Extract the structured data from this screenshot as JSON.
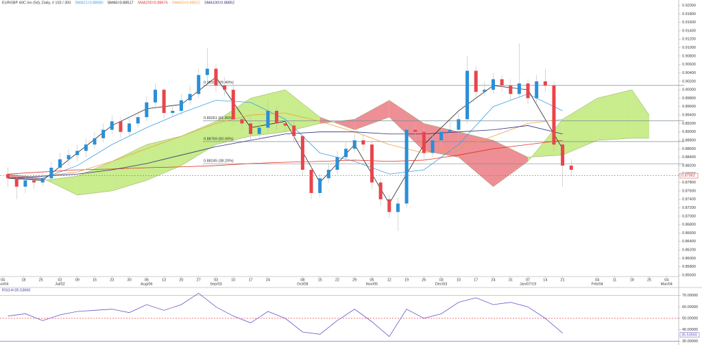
{
  "chart_data": [
    {
      "type": "candlestick",
      "title": "EURGBP 40C Ixn (5d), Daily, # 103 / 300",
      "up_color": "#2a8fd6",
      "down_color": "#e8454b",
      "x": [
        -3,
        -2.5,
        -2,
        -1.5,
        -1,
        -0.5,
        0,
        0.5,
        1,
        1.5,
        2,
        2.5,
        3,
        3.5,
        4,
        4.5,
        5,
        5.5,
        6,
        6.5,
        7,
        7.5,
        8,
        8.5,
        9,
        9.5,
        10,
        10.5,
        11,
        11.5,
        12,
        12.5,
        13,
        13.5,
        14,
        14.5,
        15,
        15.5,
        16,
        16.5,
        17,
        17.5,
        18,
        18.5,
        19,
        19.5,
        20,
        20.5,
        21,
        21.5,
        22,
        22.5,
        23,
        23.5,
        24,
        24.5,
        25,
        25.5,
        26,
        26.5,
        27,
        27.5,
        28,
        28.5,
        29,
        29.5
      ],
      "open": [
        0.88,
        0.879,
        0.877,
        0.8785,
        0.878,
        0.879,
        0.8815,
        0.8835,
        0.8845,
        0.8855,
        0.887,
        0.8885,
        0.8905,
        0.8925,
        0.89,
        0.892,
        0.8935,
        0.897,
        0.9,
        0.8945,
        0.895,
        0.8975,
        0.899,
        0.9035,
        0.905,
        0.901,
        0.9,
        0.893,
        0.892,
        0.8895,
        0.891,
        0.895,
        0.892,
        0.8915,
        0.889,
        0.881,
        0.8755,
        0.879,
        0.881,
        0.884,
        0.886,
        0.888,
        0.887,
        0.878,
        0.874,
        0.871,
        0.873,
        0.8905,
        0.89,
        0.885,
        0.888,
        0.89,
        0.8905,
        0.893,
        0.9045,
        0.8995,
        0.9,
        0.9025,
        0.901,
        0.899,
        0.9015,
        0.898,
        0.902,
        0.901,
        0.887,
        0.882
      ],
      "high": [
        0.8815,
        0.88,
        0.88,
        0.88,
        0.8805,
        0.883,
        0.885,
        0.886,
        0.887,
        0.8885,
        0.89,
        0.892,
        0.894,
        0.8935,
        0.8935,
        0.895,
        0.8985,
        0.9015,
        0.9005,
        0.8965,
        0.899,
        0.901,
        0.905,
        0.91,
        0.906,
        0.903,
        0.901,
        0.8945,
        0.8935,
        0.8925,
        0.8975,
        0.896,
        0.8935,
        0.8925,
        0.89,
        0.882,
        0.88,
        0.8825,
        0.8855,
        0.8875,
        0.89,
        0.8895,
        0.888,
        0.879,
        0.875,
        0.8745,
        0.8915,
        0.892,
        0.891,
        0.8895,
        0.8915,
        0.8925,
        0.8945,
        0.908,
        0.9055,
        0.902,
        0.904,
        0.9035,
        0.9025,
        0.911,
        0.9025,
        0.9035,
        0.905,
        0.902,
        0.888,
        0.8835
      ],
      "low": [
        0.877,
        0.874,
        0.8755,
        0.8765,
        0.877,
        0.878,
        0.8805,
        0.882,
        0.883,
        0.884,
        0.886,
        0.8875,
        0.8895,
        0.8885,
        0.889,
        0.891,
        0.8925,
        0.896,
        0.893,
        0.8935,
        0.894,
        0.8965,
        0.898,
        0.902,
        0.8995,
        0.8985,
        0.8915,
        0.8905,
        0.888,
        0.888,
        0.89,
        0.8905,
        0.89,
        0.8875,
        0.8795,
        0.874,
        0.8745,
        0.878,
        0.88,
        0.883,
        0.885,
        0.8855,
        0.8765,
        0.8725,
        0.8695,
        0.8665,
        0.872,
        0.8885,
        0.8835,
        0.884,
        0.8865,
        0.889,
        0.8895,
        0.892,
        0.898,
        0.8985,
        0.899,
        0.8995,
        0.8975,
        0.898,
        0.8965,
        0.897,
        0.8995,
        0.8855,
        0.877,
        0.8795
      ],
      "close": [
        0.879,
        0.877,
        0.8785,
        0.878,
        0.879,
        0.8815,
        0.8835,
        0.8845,
        0.8855,
        0.887,
        0.8885,
        0.8905,
        0.8925,
        0.89,
        0.892,
        0.8935,
        0.897,
        0.9,
        0.8945,
        0.895,
        0.8975,
        0.899,
        0.9035,
        0.905,
        0.901,
        0.9,
        0.893,
        0.892,
        0.8895,
        0.891,
        0.895,
        0.892,
        0.8915,
        0.889,
        0.881,
        0.8755,
        0.879,
        0.881,
        0.884,
        0.886,
        0.888,
        0.887,
        0.878,
        0.874,
        0.871,
        0.873,
        0.8905,
        0.89,
        0.885,
        0.888,
        0.89,
        0.8905,
        0.893,
        0.9045,
        0.8995,
        0.9,
        0.9025,
        0.901,
        0.899,
        0.9015,
        0.898,
        0.902,
        0.901,
        0.887,
        0.882,
        0.881
      ],
      "cloud": {
        "x": [
          -3,
          -1,
          1,
          3,
          5,
          7,
          9,
          11,
          13,
          15,
          17,
          19,
          21,
          23,
          25,
          27,
          29,
          31,
          33,
          34
        ],
        "span_a": [
          0.879,
          0.8785,
          0.8795,
          0.883,
          0.887,
          0.889,
          0.8925,
          0.898,
          0.9,
          0.8935,
          0.8905,
          0.8935,
          0.8855,
          0.884,
          0.877,
          0.883,
          0.893,
          0.898,
          0.9,
          0.894
        ],
        "span_b": [
          0.88,
          0.879,
          0.875,
          0.876,
          0.8785,
          0.882,
          0.887,
          0.889,
          0.89,
          0.892,
          0.893,
          0.8975,
          0.892,
          0.89,
          0.888,
          0.884,
          0.8845,
          0.888,
          0.8885,
          0.8885
        ],
        "up_color": "#c9ec8c",
        "down_color": "#ee8f95"
      },
      "series": [
        {
          "name": "SMA21=0.88680",
          "color": "#3aa0e0",
          "x": [
            -3,
            -1,
            1,
            3,
            5,
            7,
            9,
            11,
            13,
            15,
            17,
            19,
            21,
            23,
            25,
            27,
            29
          ],
          "values": [
            0.879,
            0.879,
            0.882,
            0.887,
            0.891,
            0.8945,
            0.8975,
            0.897,
            0.893,
            0.885,
            0.883,
            0.88,
            0.881,
            0.887,
            0.896,
            0.899,
            0.895
          ]
        },
        {
          "name": "SMA5=0.88517",
          "color": "#222222",
          "x": [
            -3,
            -1,
            1,
            3,
            5,
            7,
            9,
            11,
            13,
            15,
            17,
            19,
            21,
            23,
            25,
            27,
            29
          ],
          "values": [
            0.879,
            0.8785,
            0.885,
            0.8915,
            0.8955,
            0.8965,
            0.903,
            0.891,
            0.8925,
            0.878,
            0.887,
            0.873,
            0.887,
            0.895,
            0.901,
            0.9,
            0.886
          ]
        },
        {
          "name": "SMA200=0.88676",
          "color": "#e03020",
          "x": [
            -3,
            -1,
            1,
            3,
            5,
            7,
            9,
            11,
            13,
            15,
            17,
            19,
            21,
            23,
            25,
            27,
            29
          ],
          "values": [
            0.88,
            0.8805,
            0.881,
            0.8812,
            0.8815,
            0.8817,
            0.882,
            0.8825,
            0.8828,
            0.883,
            0.8833,
            0.883,
            0.8833,
            0.8845,
            0.886,
            0.887,
            0.888
          ]
        },
        {
          "name": "SMA50=0.88522",
          "color": "#f0a040",
          "x": [
            -3,
            -1,
            1,
            3,
            5,
            7,
            9,
            11,
            13,
            15,
            17,
            19,
            21,
            23,
            25,
            27,
            29
          ],
          "values": [
            0.879,
            0.8795,
            0.8805,
            0.883,
            0.886,
            0.889,
            0.892,
            0.894,
            0.8945,
            0.8925,
            0.89,
            0.887,
            0.885,
            0.886,
            0.889,
            0.892,
            0.893
          ]
        },
        {
          "name": "SMA100=0.88852",
          "color": "#2a2a7a",
          "x": [
            -3,
            -1,
            1,
            3,
            5,
            7,
            9,
            11,
            13,
            15,
            17,
            19,
            21,
            23,
            25,
            27,
            29
          ],
          "values": [
            0.879,
            0.8795,
            0.88,
            0.881,
            0.8825,
            0.8845,
            0.8865,
            0.888,
            0.8895,
            0.89,
            0.89,
            0.8895,
            0.8895,
            0.89,
            0.8905,
            0.8915,
            0.8895
          ]
        }
      ],
      "fib_levels": [
        {
          "value": 0.90103,
          "label": "0.90103 (76.40%)"
        },
        {
          "value": 0.89261,
          "label": "0.89261 (61.80%)"
        },
        {
          "value": 0.88769,
          "label": "0.88769 (50.00%)"
        },
        {
          "value": 0.88245,
          "label": "0.88245 (38.20%)"
        }
      ],
      "last_price": {
        "value": 0.87962,
        "label": "0.87962"
      },
      "xlim": [
        -3.46,
        35.7
      ],
      "ylim": [
        0.856,
        0.92
      ],
      "yticks": [
        {
          "value": 0.92,
          "label": "0.92000"
        },
        {
          "value": 0.918,
          "label": "0.91800"
        },
        {
          "value": 0.916,
          "label": "0.91600"
        },
        {
          "value": 0.914,
          "label": "0.91400"
        },
        {
          "value": 0.912,
          "label": "0.91200"
        },
        {
          "value": 0.91,
          "label": "0.91000"
        },
        {
          "value": 0.908,
          "label": "0.90800"
        },
        {
          "value": 0.906,
          "label": "0.90600"
        },
        {
          "value": 0.904,
          "label": "0.90400"
        },
        {
          "value": 0.902,
          "label": "0.90200"
        },
        {
          "value": 0.9,
          "label": "0.90000"
        },
        {
          "value": 0.898,
          "label": "0.89800"
        },
        {
          "value": 0.896,
          "label": "0.89600"
        },
        {
          "value": 0.894,
          "label": "0.89400"
        },
        {
          "value": 0.892,
          "label": "0.89200"
        },
        {
          "value": 0.89,
          "label": "0.89000"
        },
        {
          "value": 0.888,
          "label": "0.88800"
        },
        {
          "value": 0.886,
          "label": "0.88600"
        },
        {
          "value": 0.884,
          "label": "0.88400"
        },
        {
          "value": 0.882,
          "label": "0.88200"
        },
        {
          "value": 0.88,
          "label": "0.88000"
        },
        {
          "value": 0.878,
          "label": "0.87800"
        },
        {
          "value": 0.876,
          "label": "0.87600"
        },
        {
          "value": 0.874,
          "label": "0.87400"
        },
        {
          "value": 0.872,
          "label": "0.87200"
        },
        {
          "value": 0.87,
          "label": "0.87000"
        },
        {
          "value": 0.868,
          "label": "0.86800"
        },
        {
          "value": 0.866,
          "label": "0.86600"
        },
        {
          "value": 0.864,
          "label": "0.86400"
        },
        {
          "value": 0.862,
          "label": "0.86200"
        },
        {
          "value": 0.86,
          "label": "0.86000"
        },
        {
          "value": 0.858,
          "label": "0.85800"
        },
        {
          "value": 0.856,
          "label": "0.85600"
        }
      ],
      "xticks": [
        {
          "value": -3.3,
          "label": "04"
        },
        {
          "value": -2.1,
          "label": "18"
        },
        {
          "value": -1.1,
          "label": "25"
        },
        {
          "value": 0,
          "label": "02"
        },
        {
          "value": 1,
          "label": "09"
        },
        {
          "value": 2,
          "label": "16"
        },
        {
          "value": 3,
          "label": "23"
        },
        {
          "value": 4,
          "label": "30"
        },
        {
          "value": 5,
          "label": "06"
        },
        {
          "value": 6,
          "label": "13"
        },
        {
          "value": 7,
          "label": "20"
        },
        {
          "value": 8,
          "label": "27"
        },
        {
          "value": 9,
          "label": "03"
        },
        {
          "value": 10,
          "label": "10"
        },
        {
          "value": 11,
          "label": "17"
        },
        {
          "value": 12,
          "label": "24"
        },
        {
          "value": 14,
          "label": "08"
        },
        {
          "value": 15,
          "label": "15"
        },
        {
          "value": 16,
          "label": "22"
        },
        {
          "value": 17,
          "label": "29"
        },
        {
          "value": 18,
          "label": "05"
        },
        {
          "value": 19,
          "label": "12"
        },
        {
          "value": 20,
          "label": "19"
        },
        {
          "value": 21,
          "label": "26"
        },
        {
          "value": 22,
          "label": "03"
        },
        {
          "value": 23,
          "label": "10"
        },
        {
          "value": 24,
          "label": "17"
        },
        {
          "value": 25,
          "label": "24"
        },
        {
          "value": 26,
          "label": "31"
        },
        {
          "value": 27,
          "label": "07"
        },
        {
          "value": 28,
          "label": "14"
        },
        {
          "value": 29,
          "label": "21"
        },
        {
          "value": 31,
          "label": "04"
        },
        {
          "value": 32,
          "label": "11"
        },
        {
          "value": 33,
          "label": "18"
        },
        {
          "value": 34,
          "label": "25"
        },
        {
          "value": 35,
          "label": "04"
        }
      ],
      "month_ticks": [
        {
          "value": -3.3,
          "label": "Jun/04"
        },
        {
          "value": 0,
          "label": "Jul/02"
        },
        {
          "value": 5,
          "label": "Aug/06"
        },
        {
          "value": 9,
          "label": "Sep/03"
        },
        {
          "value": 14,
          "label": "Oct/08"
        },
        {
          "value": 18,
          "label": "Nov/05"
        },
        {
          "value": 22,
          "label": "Dec/03"
        },
        {
          "value": 27,
          "label": "Jan/07/19"
        },
        {
          "value": 31,
          "label": "Feb/04"
        },
        {
          "value": 35,
          "label": "Mar/04"
        }
      ]
    },
    {
      "type": "line",
      "title": "RSI14=35.53660",
      "series": [
        {
          "color": "#6a52c8",
          "x": [
            -3,
            -2,
            -1,
            0,
            1,
            2,
            3,
            4,
            5,
            6,
            7,
            8,
            9,
            10,
            11,
            12,
            13,
            14,
            15,
            16,
            17,
            18,
            19,
            20,
            21,
            22,
            23,
            24,
            25,
            26,
            27,
            28,
            29
          ],
          "values": [
            52,
            54,
            48,
            53,
            56,
            57,
            58,
            55,
            62,
            57,
            62,
            72,
            60,
            52,
            46,
            56,
            50,
            38,
            36,
            48,
            58,
            47,
            34,
            58,
            50,
            54,
            64,
            68,
            62,
            64,
            60,
            50,
            37
          ]
        }
      ],
      "hlines": [
        {
          "value": 70,
          "color": "#f0a040"
        },
        {
          "value": 50,
          "color": "#e04040"
        },
        {
          "value": 30,
          "color": "#4060d0"
        }
      ],
      "last_value": {
        "value": 35.5366,
        "label": "35.53660"
      },
      "xlim": [
        -3.46,
        35.7
      ],
      "ylim": [
        29,
        74
      ],
      "yticks": [
        {
          "value": 70,
          "label": "70.00000"
        },
        {
          "value": 60,
          "label": "60.00000"
        },
        {
          "value": 50,
          "label": "50.00000"
        },
        {
          "value": 40,
          "label": "40.00000"
        },
        {
          "value": 30,
          "label": "30.00000"
        }
      ]
    }
  ]
}
